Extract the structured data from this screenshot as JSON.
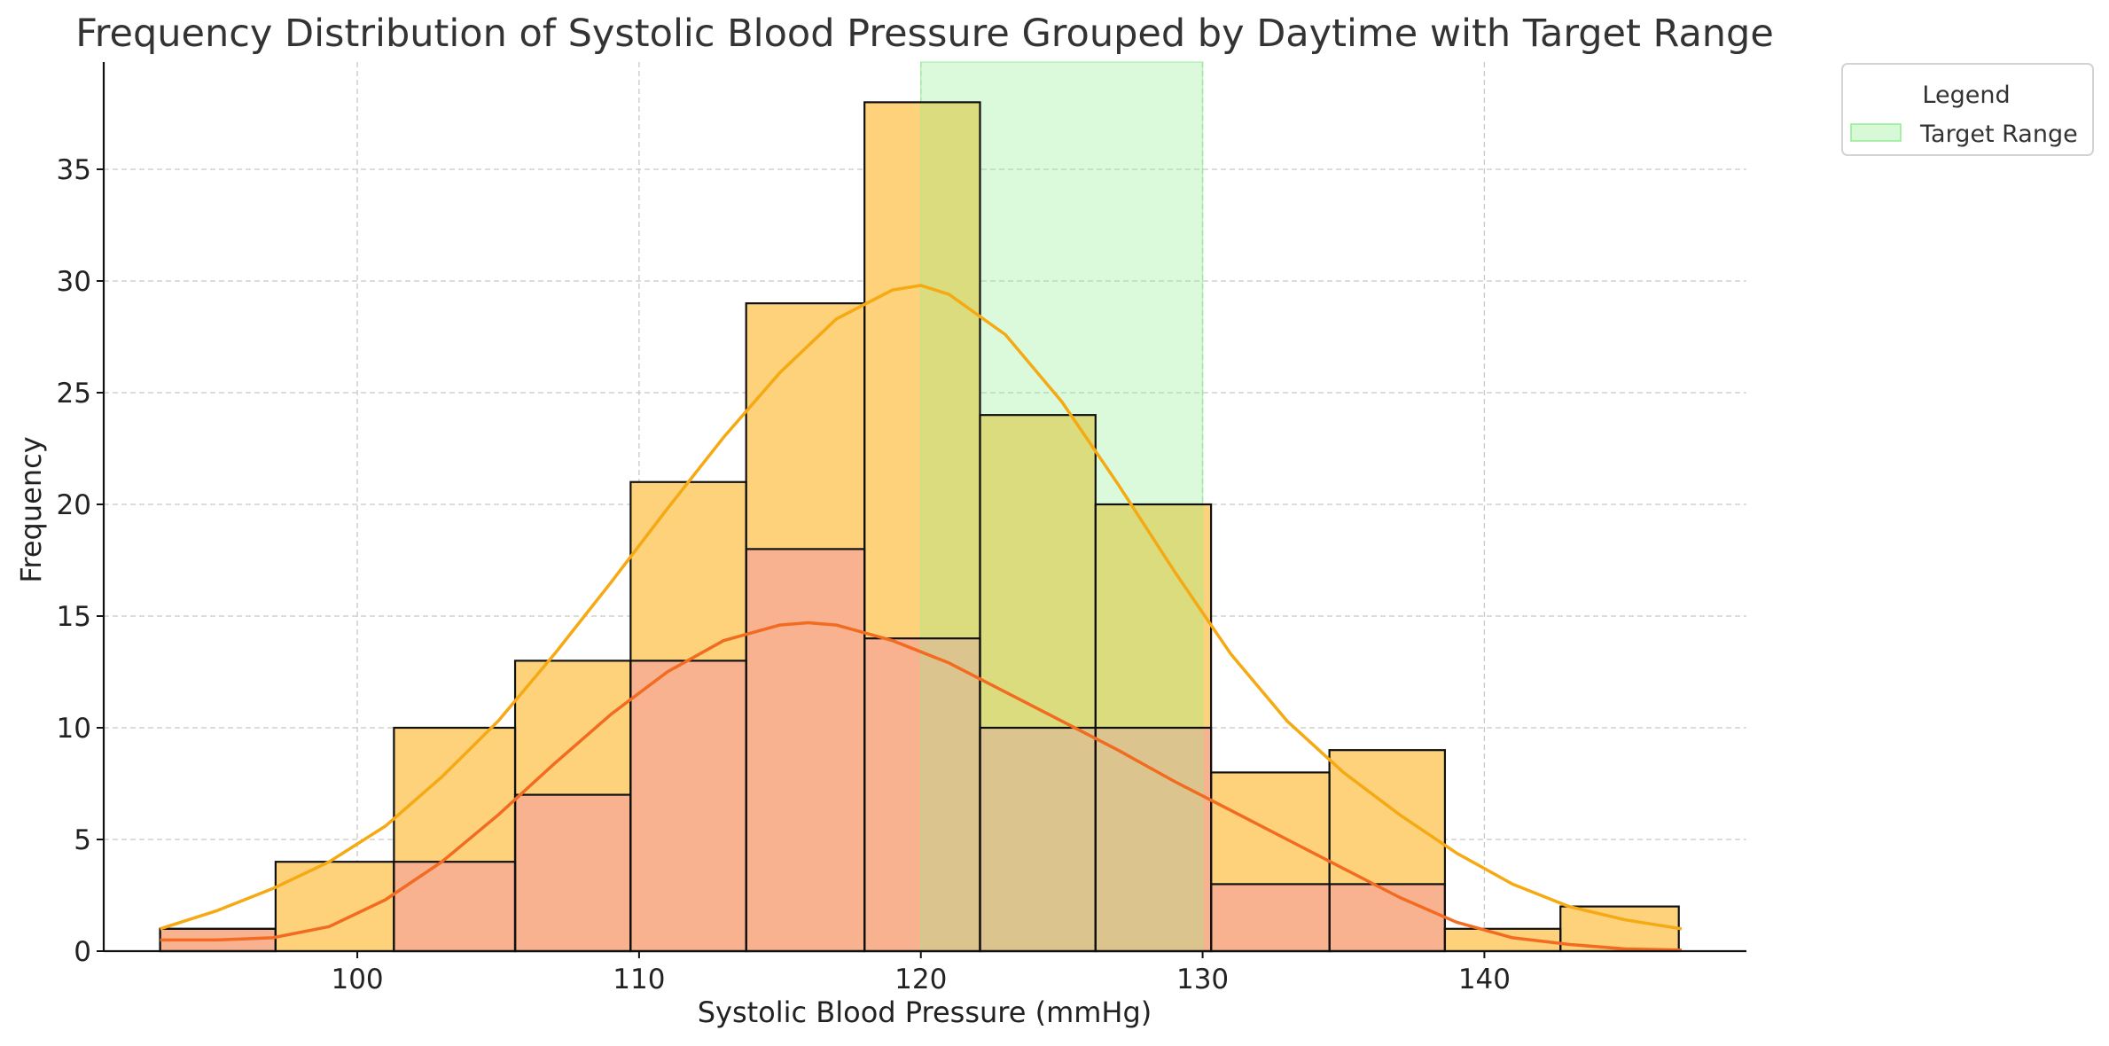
{
  "chart_data": {
    "type": "histogram",
    "title": "Frequency Distribution of Systolic Blood Pressure Grouped by Daytime with Target Range",
    "xlabel": "Systolic Blood Pressure (mmHg)",
    "ylabel": "Frequency",
    "xlim": [
      91.0,
      149.3
    ],
    "ylim": [
      0,
      39.8
    ],
    "xticks": [
      100,
      110,
      120,
      130,
      140
    ],
    "yticks": [
      0,
      5,
      10,
      15,
      20,
      25,
      30,
      35
    ],
    "grid": true,
    "bin_edges": [
      93.0,
      97.1,
      101.3,
      105.6,
      109.7,
      113.8,
      118.0,
      122.1,
      126.2,
      130.3,
      134.5,
      138.6,
      142.7,
      146.9
    ],
    "series": [
      {
        "color": "#fdd27b",
        "values": [
          1,
          4,
          10,
          13,
          21,
          29,
          38,
          24,
          20,
          8,
          9,
          1,
          2
        ],
        "kde": {
          "color": "#f5a912",
          "x": [
            93,
            95,
            97,
            99,
            101,
            103,
            105,
            107,
            109,
            111,
            113,
            115,
            117,
            119,
            120,
            121,
            123,
            125,
            127,
            129,
            131,
            133,
            135,
            137,
            139,
            141,
            143,
            145,
            147
          ],
          "y": [
            1.0,
            1.8,
            2.8,
            4.0,
            5.6,
            7.8,
            10.3,
            13.3,
            16.5,
            19.8,
            23.0,
            25.9,
            28.3,
            29.6,
            29.8,
            29.4,
            27.6,
            24.6,
            20.9,
            17.0,
            13.3,
            10.3,
            8.0,
            6.1,
            4.4,
            3.0,
            2.0,
            1.4,
            1.0
          ]
        }
      },
      {
        "color": "#f8b290",
        "values": [
          1,
          0,
          4,
          7,
          13,
          18,
          14,
          10,
          10,
          3,
          3,
          0,
          0
        ],
        "kde": {
          "color": "#f26b21",
          "x": [
            93,
            95,
            97,
            99,
            101,
            103,
            105,
            107,
            109,
            111,
            113,
            115,
            116,
            117,
            119,
            121,
            123,
            125,
            127,
            129,
            131,
            133,
            135,
            137,
            139,
            141,
            143,
            145,
            147
          ],
          "y": [
            0.5,
            0.5,
            0.6,
            1.1,
            2.3,
            4.0,
            6.1,
            8.4,
            10.6,
            12.5,
            13.9,
            14.6,
            14.7,
            14.6,
            13.9,
            12.9,
            11.6,
            10.3,
            9.0,
            7.6,
            6.3,
            5.0,
            3.7,
            2.4,
            1.3,
            0.6,
            0.3,
            0.1,
            0.05
          ]
        }
      }
    ],
    "overlap_color": "#dbc48d",
    "target_range": {
      "label": "Target Range",
      "x_start": 120,
      "x_end": 130,
      "color": "#90ee90",
      "overlap_top_color": "#dbdc7e",
      "overlap_bottom_color": "#dbc48d"
    },
    "legend": {
      "title": "Legend",
      "placement": "outside-top-right",
      "entries": [
        "Target Range"
      ]
    }
  }
}
